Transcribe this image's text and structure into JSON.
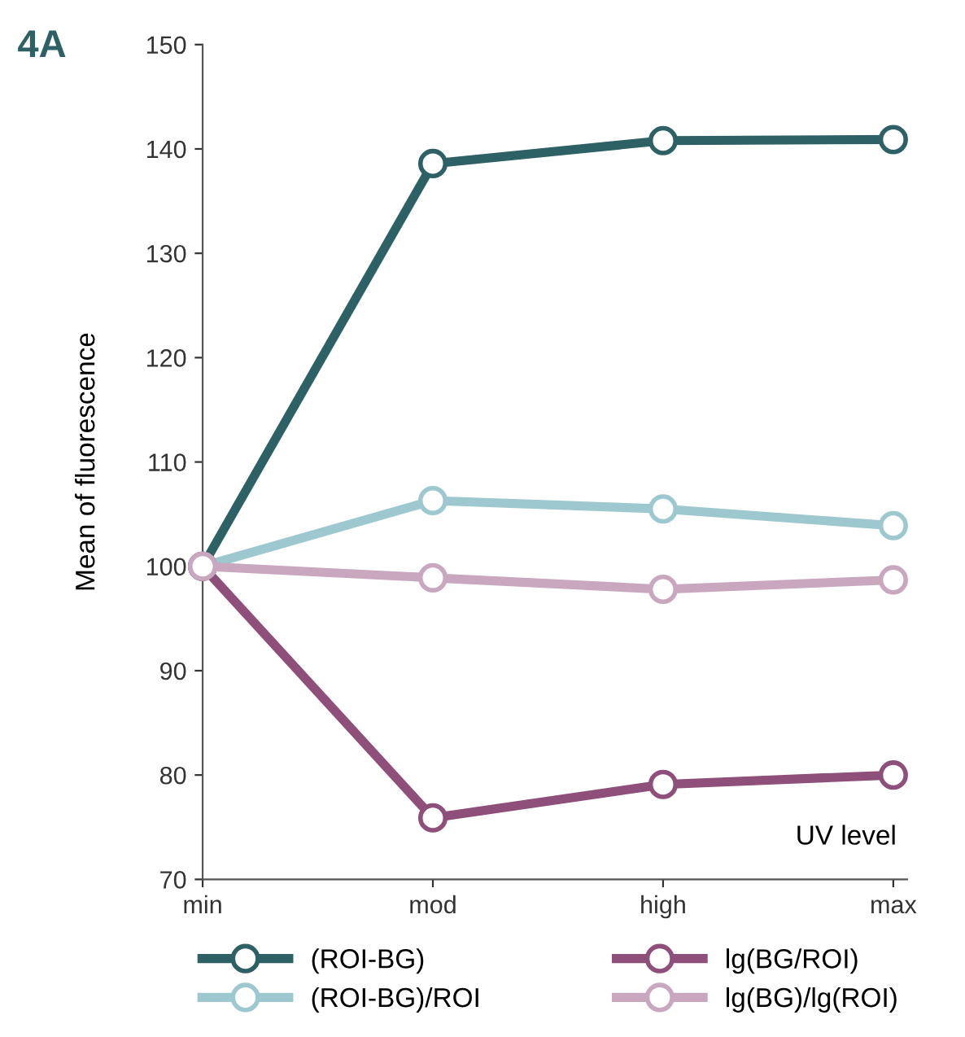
{
  "chart_data": {
    "type": "line",
    "title": "4A",
    "xlabel": "UV level",
    "ylabel": "Mean of fluorescence",
    "categories": [
      "min",
      "mod",
      "high",
      "max"
    ],
    "series": [
      {
        "name": "(ROI-BG)",
        "color": "#2e6165",
        "values": [
          100,
          138.6,
          140.8,
          140.9
        ]
      },
      {
        "name": "(ROI-BG)/ROI",
        "color": "#9ec8cf",
        "values": [
          100,
          106.3,
          105.5,
          103.9
        ]
      },
      {
        "name": "lg(BG/ROI)",
        "color": "#8e4f7a",
        "values": [
          100,
          75.9,
          79.1,
          80
        ]
      },
      {
        "name": "lg(BG)/lg(ROI)",
        "color": "#c9a8bf",
        "values": [
          100,
          98.9,
          97.8,
          98.7
        ]
      }
    ],
    "ylim": [
      70,
      150
    ],
    "yticks": [
      70,
      80,
      90,
      100,
      110,
      120,
      130,
      140,
      150
    ],
    "grid": false,
    "legend": "bottom",
    "marker": "circle",
    "line_style": "solid"
  }
}
